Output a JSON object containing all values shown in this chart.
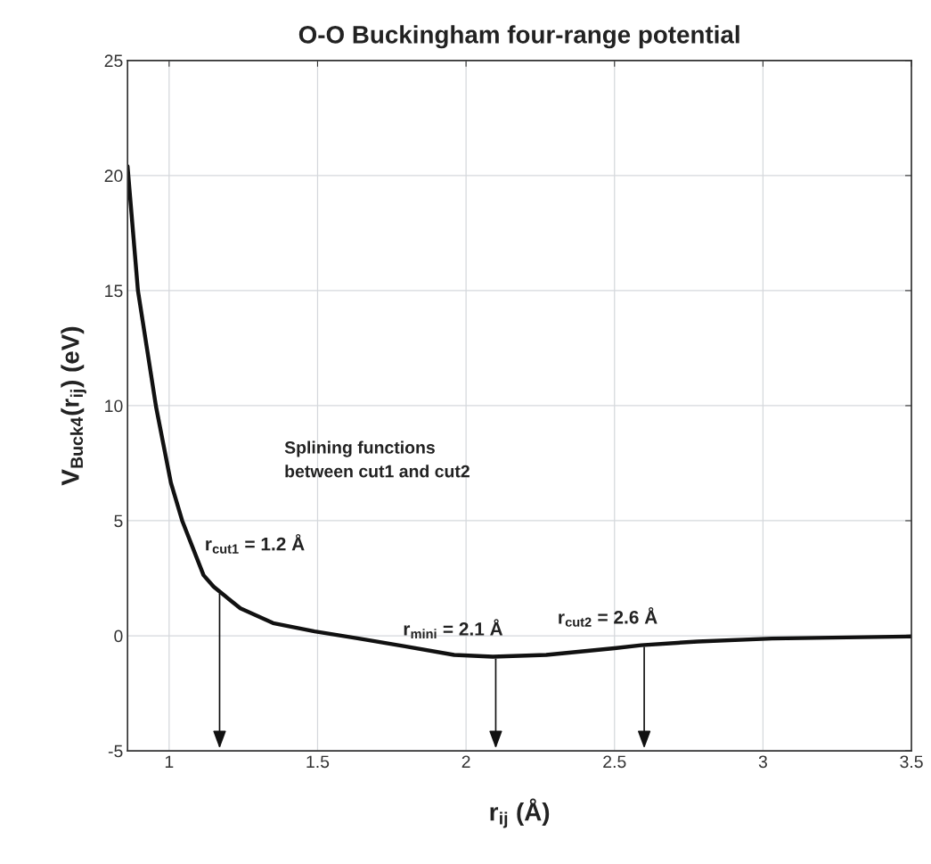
{
  "chart_data": {
    "type": "line",
    "title": "O-O Buckingham four-range potential",
    "xlabel": "r$_{ij}$ (Å)",
    "ylabel": "V$_{Buck4}$(r$_{ij}$) (eV)",
    "series": [
      {
        "color": "#111111",
        "x": [
          0.86,
          0.895,
          0.956,
          1.006,
          1.044,
          1.116,
          1.15,
          1.24,
          1.35,
          1.49,
          1.63,
          1.79,
          1.96,
          2.09,
          2.27,
          2.5,
          2.59,
          2.78,
          3.03,
          3.5
        ],
        "values": [
          20.4,
          15.0,
          9.95,
          6.65,
          5.0,
          2.63,
          2.13,
          1.19,
          0.55,
          0.19,
          -0.1,
          -0.45,
          -0.83,
          -0.91,
          -0.83,
          -0.54,
          -0.41,
          -0.25,
          -0.12,
          -0.03
        ]
      }
    ],
    "xlim": [
      0.86,
      3.5
    ],
    "xticks": [
      1,
      1.5,
      2,
      2.5,
      3,
      3.5
    ],
    "ylim": [
      -5,
      25
    ],
    "yticks": [
      -5,
      0,
      5,
      10,
      15,
      20,
      25
    ],
    "grid": true,
    "marker": "none",
    "line_style": "solid",
    "annotations": [
      {
        "text": "r$_{cut1}$ = 1.2 Å",
        "x": 1.17,
        "y": 1.92
      },
      {
        "text": "r$_{mini}$ = 2.1 Å",
        "x": 2.1,
        "y": -0.91
      },
      {
        "text": "r$_{cut2}$ = 2.6 Å",
        "x": 2.6,
        "y": -0.4
      },
      "Splining functions\nbetween cut1 and cut2"
    ]
  }
}
